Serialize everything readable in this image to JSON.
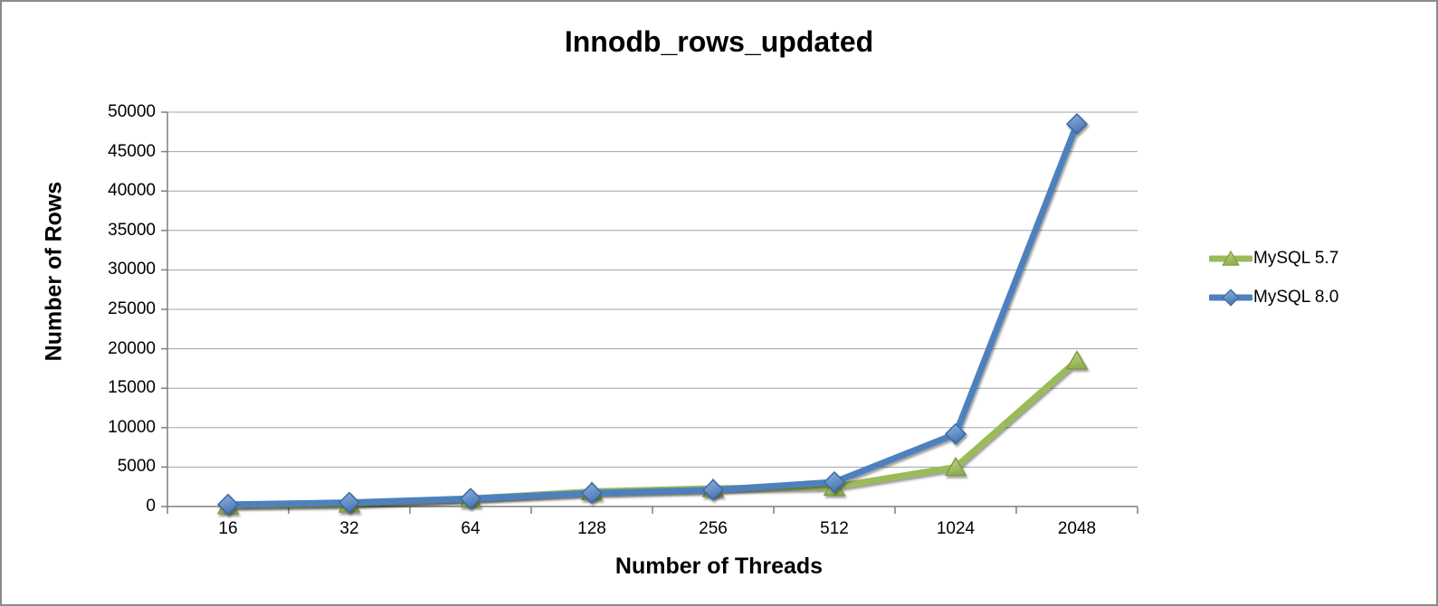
{
  "window": {
    "background": "#ffffff",
    "border_color": "#8a8a8a"
  },
  "chart_data": {
    "type": "line",
    "title": "Innodb_rows_updated",
    "xlabel": "Number of Threads",
    "ylabel": "Number of Rows",
    "categories": [
      "16",
      "32",
      "64",
      "128",
      "256",
      "512",
      "1024",
      "2048"
    ],
    "series": [
      {
        "name": "MySQL 5.7",
        "marker": "triangle",
        "line_color": "#9bbb59",
        "marker_fill_light": "#c3d889",
        "marker_fill_dark": "#8fb04e",
        "marker_stroke": "#7e9b42",
        "values": [
          150,
          350,
          1000,
          1900,
          2300,
          2500,
          5000,
          18500
        ]
      },
      {
        "name": "MySQL 8.0",
        "marker": "diamond",
        "line_color": "#4e81bd",
        "marker_fill_light": "#8fb3e2",
        "marker_fill_dark": "#4a77b2",
        "marker_stroke": "#3a68a4",
        "values": [
          250,
          500,
          1000,
          1700,
          2100,
          3100,
          9200,
          48500
        ]
      }
    ],
    "ylim": [
      0,
      50000
    ],
    "ytick_step": 5000,
    "ytick_labels": [
      "0",
      "5000",
      "10000",
      "15000",
      "20000",
      "25000",
      "30000",
      "35000",
      "40000",
      "45000",
      "50000"
    ],
    "grid": true,
    "legend_position": "right",
    "axis_color": "#7f7f7f",
    "gridline_color": "#a3a3a3",
    "text_color": "#000000"
  }
}
